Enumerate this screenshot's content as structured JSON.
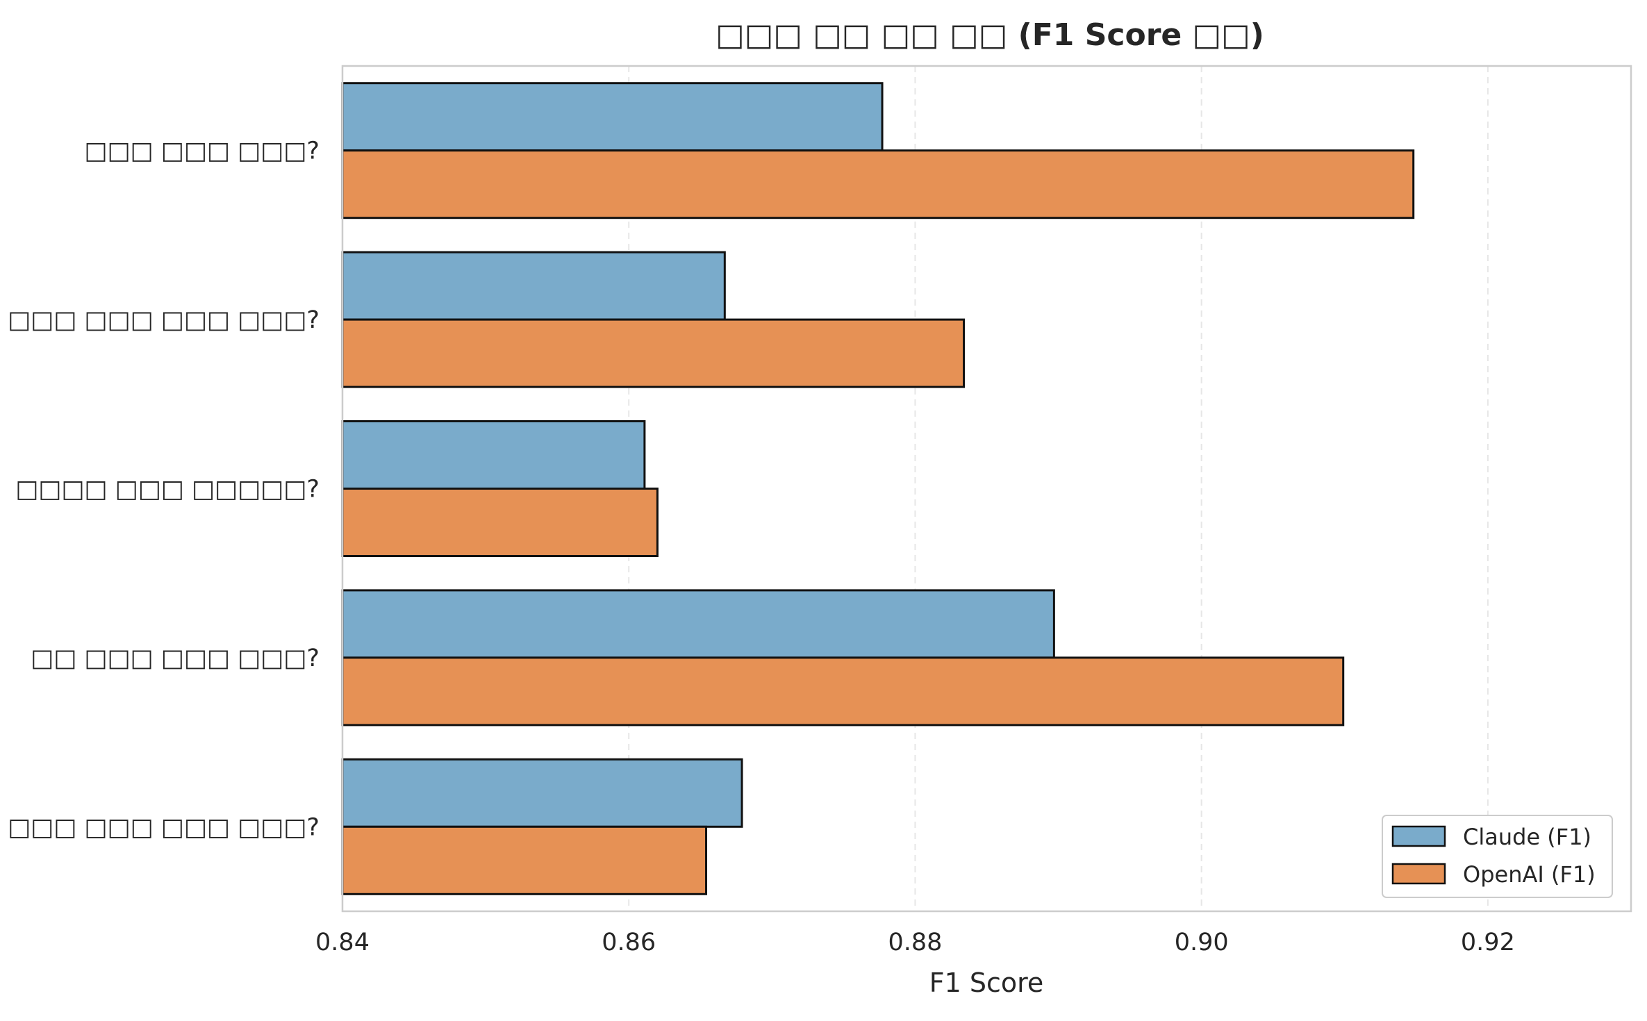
{
  "chart_data": {
    "type": "bar",
    "orientation": "horizontal",
    "title": "□□□ □□ □□ □□ (F1 Score □□)",
    "xlabel": "F1 Score",
    "ylabel": "",
    "xlim": [
      0.84,
      0.93
    ],
    "xticks": [
      "0.84",
      "0.86",
      "0.88",
      "0.90",
      "0.92"
    ],
    "xtick_values": [
      0.84,
      0.86,
      0.88,
      0.9,
      0.92
    ],
    "categories": [
      "□□□ □□□ □□□?",
      "□□□ □□□ □□□ □□□?",
      "□□□□ □□□ □□□□□?",
      "□□ □□□ □□□ □□□?",
      "□□□ □□□ □□□ □□□?"
    ],
    "series": [
      {
        "name": "Claude (F1)",
        "color": "#7aabcb",
        "values": [
          0.8777,
          0.8667,
          0.8611,
          0.8897,
          0.8679
        ]
      },
      {
        "name": "OpenAI (F1)",
        "color": "#e69155",
        "values": [
          0.9148,
          0.8834,
          0.862,
          0.9099,
          0.8654
        ]
      }
    ],
    "grid": "x-dashed",
    "legend_position": "lower-right"
  }
}
